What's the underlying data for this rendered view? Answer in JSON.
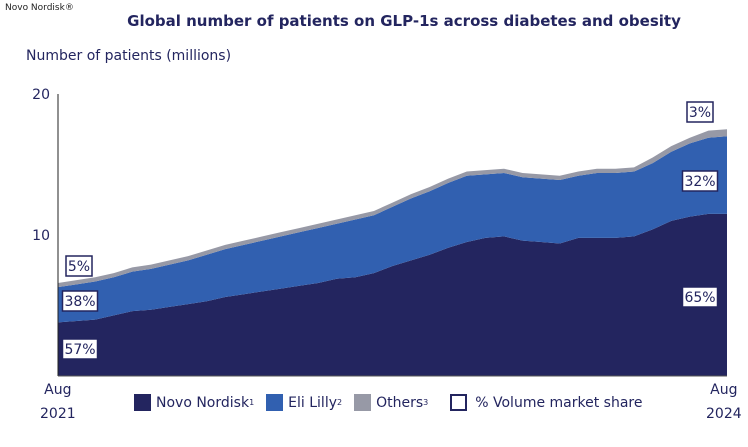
{
  "brand": "Novo Nordisk®",
  "chart_data": {
    "type": "area",
    "stacked": true,
    "title": "Global number of patients on GLP-1s across diabetes and obesity",
    "ylabel": "Number of patients (millions)",
    "ylim": [
      0,
      20
    ],
    "yticks": [
      "10",
      "20"
    ],
    "xticks": [
      {
        "line1": "Aug",
        "line2": "2021"
      },
      {
        "line1": "Aug",
        "line2": "2024"
      }
    ],
    "x": [
      "2021-08",
      "2021-09",
      "2021-10",
      "2021-11",
      "2021-12",
      "2022-01",
      "2022-02",
      "2022-03",
      "2022-04",
      "2022-05",
      "2022-06",
      "2022-07",
      "2022-08",
      "2022-09",
      "2022-10",
      "2022-11",
      "2022-12",
      "2023-01",
      "2023-02",
      "2023-03",
      "2023-04",
      "2023-05",
      "2023-06",
      "2023-07",
      "2023-08",
      "2023-09",
      "2023-10",
      "2023-11",
      "2023-12",
      "2024-01",
      "2024-02",
      "2024-03",
      "2024-04",
      "2024-05",
      "2024-06",
      "2024-07",
      "2024-08"
    ],
    "series": [
      {
        "name": "Novo Nordisk",
        "sup": "1",
        "color": "#23255f",
        "values": [
          3.8,
          3.9,
          4.0,
          4.3,
          4.6,
          4.7,
          4.9,
          5.1,
          5.3,
          5.6,
          5.8,
          6.0,
          6.2,
          6.4,
          6.6,
          6.9,
          7.0,
          7.3,
          7.8,
          8.2,
          8.6,
          9.1,
          9.5,
          9.8,
          9.9,
          9.6,
          9.5,
          9.4,
          9.8,
          9.8,
          9.8,
          9.9,
          10.4,
          11.0,
          11.3,
          11.5,
          11.5
        ]
      },
      {
        "name": "Eli Lilly",
        "sup": "2",
        "color": "#3160b0",
        "values": [
          2.5,
          2.6,
          2.7,
          2.7,
          2.8,
          2.9,
          3.0,
          3.1,
          3.3,
          3.4,
          3.5,
          3.6,
          3.7,
          3.8,
          3.9,
          3.9,
          4.1,
          4.1,
          4.2,
          4.4,
          4.5,
          4.6,
          4.7,
          4.5,
          4.5,
          4.5,
          4.5,
          4.5,
          4.4,
          4.6,
          4.6,
          4.6,
          4.7,
          4.9,
          5.2,
          5.4,
          5.5
        ]
      },
      {
        "name": "Others",
        "sup": "3",
        "color": "#9799a6",
        "values": [
          0.3,
          0.3,
          0.3,
          0.3,
          0.3,
          0.3,
          0.3,
          0.3,
          0.3,
          0.3,
          0.3,
          0.3,
          0.3,
          0.3,
          0.3,
          0.3,
          0.3,
          0.3,
          0.3,
          0.3,
          0.3,
          0.3,
          0.3,
          0.3,
          0.3,
          0.3,
          0.3,
          0.3,
          0.3,
          0.3,
          0.3,
          0.3,
          0.4,
          0.4,
          0.4,
          0.5,
          0.5
        ]
      }
    ],
    "share_labels": {
      "start": {
        "Others": "5%",
        "Eli Lilly": "38%",
        "Novo Nordisk": "57%"
      },
      "end": {
        "Others": "3%",
        "Eli Lilly": "32%",
        "Novo Nordisk": "65%"
      }
    },
    "legend": {
      "placement": "bottom",
      "share_label": "% Volume market share"
    },
    "grid": false
  }
}
